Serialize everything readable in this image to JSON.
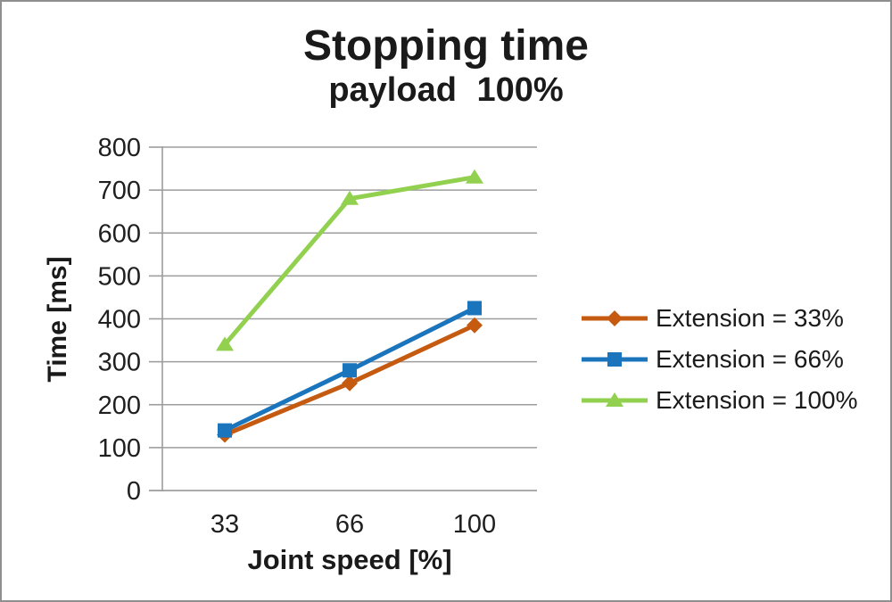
{
  "figure": {
    "title": "Stopping time",
    "subtitle": "payload 100%"
  },
  "chart_data": {
    "type": "line",
    "title": "Stopping time",
    "subtitle": "payload 100%",
    "x": [
      "33",
      "66",
      "100"
    ],
    "xlabel": "Joint speed [%]",
    "ylabel": "Time [ms]",
    "ylim": [
      0,
      800
    ],
    "ytick_step": 100,
    "grid": true,
    "legend_position": "right",
    "series": [
      {
        "name": "Extension = 33%",
        "values": [
          130,
          250,
          385
        ],
        "color": "#C55A11",
        "marker": "diamond"
      },
      {
        "name": "Extension = 66%",
        "values": [
          140,
          280,
          425
        ],
        "color": "#1B75BC",
        "marker": "square"
      },
      {
        "name": "Extension = 100%",
        "values": [
          340,
          680,
          730
        ],
        "color": "#92D050",
        "marker": "triangle"
      }
    ],
    "axis_color": "#9d9d9d",
    "text_color": "#1f1f1f"
  }
}
